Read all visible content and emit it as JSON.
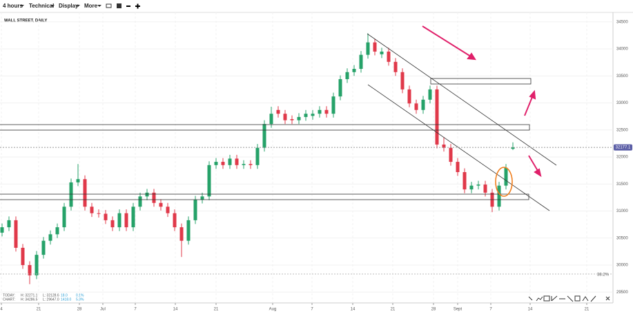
{
  "toolbar": {
    "items": [
      "4 hours",
      "Technical",
      "Display",
      "More"
    ]
  },
  "chart_data": {
    "type": "candlestick",
    "title": "WALL STREET, DAILY",
    "open": [
      30600,
      30700,
      30830,
      30320,
      30000,
      29810,
      30190,
      30450,
      30570,
      30700,
      31080,
      31530,
      31590,
      31080,
      30960,
      30950,
      30830,
      30700,
      30960,
      30700,
      31080,
      31270,
      31340,
      31150,
      31080,
      30960,
      30700,
      30450,
      30830,
      31210,
      31270,
      31850,
      31910,
      31850,
      31970,
      31850,
      31870,
      31850,
      32170,
      32610,
      32870,
      32800,
      32700,
      32680,
      32740,
      32760,
      32800,
      32870,
      32800,
      33120,
      33440,
      33570,
      33630,
      33890,
      34120,
      33900,
      33950,
      33760,
      33570,
      33250,
      32990,
      32870,
      33060,
      33250,
      32230,
      32170,
      31910,
      31720,
      31400,
      31470,
      31490,
      31340,
      31080,
      31470,
      32150
    ],
    "high": [
      30770,
      30900,
      30900,
      30390,
      30070,
      30260,
      30520,
      30640,
      30770,
      31150,
      31600,
      31870,
      31660,
      31150,
      31030,
      31020,
      30900,
      31030,
      31030,
      31150,
      31340,
      31410,
      31410,
      31220,
      31150,
      31030,
      30770,
      30900,
      31280,
      31340,
      31920,
      31980,
      31980,
      32040,
      32040,
      31940,
      31940,
      32240,
      32680,
      32930,
      32940,
      32870,
      32770,
      32810,
      32870,
      32870,
      32940,
      32940,
      33190,
      33510,
      33640,
      33700,
      33960,
      34286.5,
      34190,
      34020,
      34020,
      33830,
      33640,
      33320,
      33060,
      33130,
      33320,
      33320,
      32370,
      32240,
      31980,
      31790,
      31540,
      31560,
      31560,
      31410,
      31540,
      31870,
      32271.1
    ],
    "low": [
      30530,
      30630,
      30250,
      29930,
      29647.0,
      29740,
      30120,
      30380,
      30500,
      30630,
      31010,
      31460,
      31010,
      30890,
      30880,
      30760,
      30630,
      30630,
      30630,
      30630,
      31010,
      31200,
      31080,
      31010,
      30890,
      30630,
      30150,
      30380,
      30760,
      31140,
      31200,
      31780,
      31780,
      31780,
      31780,
      31780,
      31780,
      31780,
      32100,
      32540,
      32730,
      32610,
      32610,
      32610,
      32670,
      32690,
      32730,
      32730,
      32730,
      33050,
      33370,
      33500,
      33560,
      33820,
      33880,
      33830,
      33690,
      33500,
      33180,
      32920,
      32800,
      32800,
      32990,
      32160,
      32100,
      31840,
      31650,
      31330,
      31330,
      31400,
      31270,
      30980,
      31010,
      31400,
      32128.6
    ],
    "close": [
      30700,
      30830,
      30320,
      30000,
      29810,
      30190,
      30450,
      30570,
      30700,
      31080,
      31530,
      31590,
      31080,
      30960,
      30950,
      30830,
      30700,
      30960,
      30700,
      31080,
      31270,
      31340,
      31150,
      31080,
      30960,
      30700,
      30450,
      30830,
      31210,
      31270,
      31850,
      31910,
      31850,
      31970,
      31850,
      31870,
      31850,
      32170,
      32610,
      32800,
      32800,
      32680,
      32680,
      32740,
      32800,
      32800,
      32870,
      32800,
      33120,
      33440,
      33570,
      33630,
      33890,
      34120,
      33950,
      33950,
      33760,
      33570,
      33250,
      32990,
      32870,
      33060,
      33250,
      32230,
      32170,
      31910,
      31720,
      31400,
      31470,
      31490,
      31340,
      31080,
      31470,
      31800,
      32177.1
    ],
    "up_color": "#26a269",
    "down_color": "#e0394a",
    "ylim": [
      29300,
      34675
    ],
    "yticks": [
      29500,
      30000,
      30500,
      31000,
      31500,
      32000,
      32500,
      33000,
      33500,
      34000,
      34500
    ],
    "xlim": [
      -0.3,
      88.5
    ],
    "xticks": [
      {
        "value": -0.1,
        "label": "4"
      },
      {
        "value": 5.3,
        "label": "21"
      },
      {
        "value": 11.2,
        "label": "28"
      },
      {
        "value": 14.6,
        "label": "Jul"
      },
      {
        "value": 19.3,
        "label": "7"
      },
      {
        "value": 25.1,
        "label": "14"
      },
      {
        "value": 31,
        "label": "21"
      },
      {
        "value": 39.2,
        "label": "Aug"
      },
      {
        "value": 44.9,
        "label": "7"
      },
      {
        "value": 50.8,
        "label": "14"
      },
      {
        "value": 56.6,
        "label": "21"
      },
      {
        "value": 62.5,
        "label": "28"
      },
      {
        "value": 66,
        "label": "Sept"
      },
      {
        "value": 70.8,
        "label": "7"
      },
      {
        "value": 76.5,
        "label": "14"
      },
      {
        "value": 84.7,
        "label": "21"
      }
    ],
    "grid": true,
    "annotation": "38.2%",
    "info": [
      [
        "TODAY:",
        "H: 32271.1",
        "L: 32128.6",
        "18.0",
        "0.1%"
      ],
      [
        "CHART:",
        "H: 34286.5",
        "L: 29647.0",
        "1418.0",
        "5.3%"
      ]
    ]
  }
}
